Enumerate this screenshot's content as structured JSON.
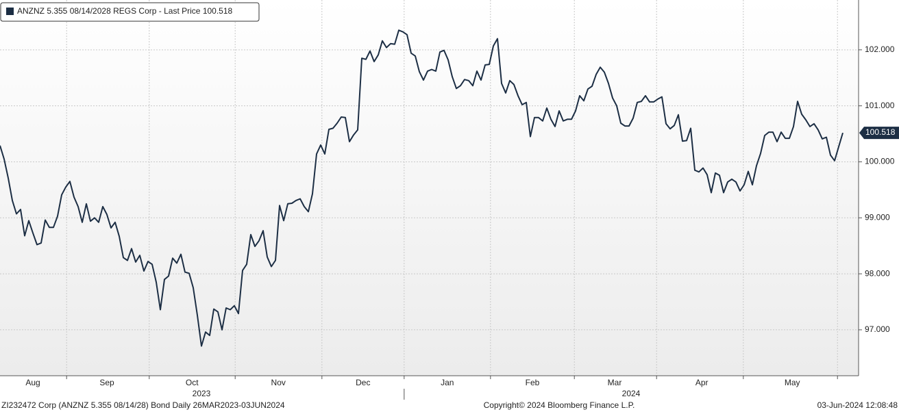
{
  "chart_data": {
    "type": "line",
    "series": [
      {
        "name": "ANZNZ 5.355 08/14/2028 REGS Corp - Last Price",
        "color": "#1c2e44",
        "values": [
          100.29,
          100.05,
          99.71,
          99.31,
          99.07,
          99.15,
          98.68,
          98.95,
          98.73,
          98.52,
          98.55,
          98.96,
          98.83,
          98.83,
          99.03,
          99.41,
          99.55,
          99.65,
          99.37,
          99.2,
          98.92,
          99.25,
          98.94,
          99.0,
          98.92,
          99.2,
          99.06,
          98.82,
          98.92,
          98.67,
          98.29,
          98.24,
          98.45,
          98.21,
          98.33,
          98.05,
          98.22,
          98.17,
          97.85,
          97.36,
          97.9,
          97.96,
          98.28,
          98.19,
          98.35,
          98.03,
          98.01,
          97.75,
          97.26,
          96.71,
          96.96,
          96.9,
          97.37,
          97.32,
          97.0,
          97.39,
          97.36,
          97.43,
          97.29,
          98.06,
          98.17,
          98.7,
          98.49,
          98.59,
          98.77,
          98.3,
          98.13,
          98.24,
          99.22,
          98.95,
          99.25,
          99.26,
          99.31,
          99.34,
          99.2,
          99.11,
          99.43,
          100.14,
          100.3,
          100.14,
          100.58,
          100.6,
          100.69,
          100.8,
          100.79,
          100.36,
          100.48,
          100.57,
          101.85,
          101.83,
          101.98,
          101.79,
          101.91,
          102.16,
          102.04,
          102.11,
          102.1,
          102.35,
          102.32,
          102.27,
          101.94,
          101.89,
          101.61,
          101.46,
          101.62,
          101.65,
          101.62,
          101.96,
          101.99,
          101.82,
          101.52,
          101.31,
          101.36,
          101.47,
          101.45,
          101.36,
          101.62,
          101.46,
          101.73,
          101.74,
          102.07,
          102.2,
          101.4,
          101.23,
          101.45,
          101.38,
          101.18,
          101.02,
          101.06,
          100.45,
          100.79,
          100.79,
          100.73,
          100.96,
          100.76,
          100.63,
          100.91,
          100.73,
          100.76,
          100.76,
          100.91,
          101.18,
          101.09,
          101.3,
          101.35,
          101.56,
          101.69,
          101.6,
          101.4,
          101.14,
          101.0,
          100.69,
          100.64,
          100.64,
          100.78,
          101.06,
          101.08,
          101.18,
          101.07,
          101.07,
          101.12,
          101.16,
          100.68,
          100.59,
          100.65,
          100.84,
          100.37,
          100.38,
          100.6,
          99.85,
          99.82,
          99.89,
          99.77,
          99.45,
          99.8,
          99.76,
          99.45,
          99.64,
          99.69,
          99.64,
          99.48,
          99.59,
          99.83,
          99.59,
          99.93,
          100.15,
          100.47,
          100.53,
          100.53,
          100.36,
          100.53,
          100.42,
          100.42,
          100.63,
          101.08,
          100.85,
          100.75,
          100.63,
          100.68,
          100.57,
          100.41,
          100.44,
          100.12,
          100.02,
          100.27,
          100.518
        ]
      }
    ],
    "xlim": [
      0,
      208.83
    ],
    "xticks": [
      16.2,
      36.3,
      57.2,
      78.3,
      98.3,
      119.3,
      139.7,
      159.7,
      180.8,
      203.7
    ],
    "month_labels": [
      {
        "value": 8,
        "label": "Aug"
      },
      {
        "value": 26,
        "label": "Sep"
      },
      {
        "value": 46.7,
        "label": "Oct"
      },
      {
        "value": 67.7,
        "label": "Nov"
      },
      {
        "value": 88.3,
        "label": "Dec"
      },
      {
        "value": 108.8,
        "label": "Jan"
      },
      {
        "value": 129.5,
        "label": "Feb"
      },
      {
        "value": 149.5,
        "label": "Mar"
      },
      {
        "value": 170.7,
        "label": "Apr"
      },
      {
        "value": 192.7,
        "label": "May"
      }
    ],
    "year_labels": [
      {
        "value": 49,
        "label": "2023"
      },
      {
        "value": 153.5,
        "label": "2024"
      }
    ],
    "year_divider": 98.3,
    "ylim": [
      96.18,
      102.89
    ],
    "yticks": [
      {
        "value": 97,
        "label": "97.000"
      },
      {
        "value": 98,
        "label": "98.000"
      },
      {
        "value": 99,
        "label": "99.000"
      },
      {
        "value": 100,
        "label": "100.000"
      },
      {
        "value": 101,
        "label": "101.000"
      },
      {
        "value": 102,
        "label": "102.000"
      }
    ],
    "grid": true,
    "footer": {
      "left": "ZI232472 Corp (ANZNZ 5.355 08/14/28) Bond  Daily 26MAR2023-03JUN2024",
      "center": "Copyright© 2024 Bloomberg Finance L.P.",
      "right": "03-Jun-2024 12:08:48"
    }
  }
}
